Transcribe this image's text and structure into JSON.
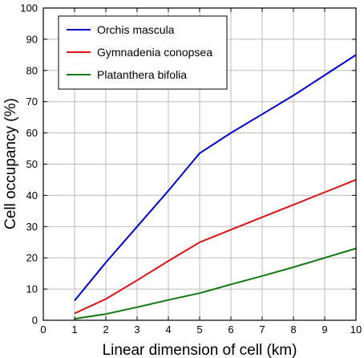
{
  "chart_data": {
    "type": "line",
    "title": "",
    "xlabel": "Linear dimension of cell (km)",
    "ylabel": "Cell occupancy (%)",
    "xlim": [
      0,
      10
    ],
    "ylim": [
      0,
      100
    ],
    "x_ticks": [
      0,
      1,
      2,
      3,
      4,
      5,
      6,
      7,
      8,
      9,
      10
    ],
    "y_ticks": [
      0,
      10,
      20,
      30,
      40,
      50,
      60,
      70,
      80,
      90,
      100
    ],
    "grid": true,
    "legend_position": "top-left",
    "series": [
      {
        "name": "Orchis mascula",
        "color": "#0000cc",
        "x": [
          1,
          2,
          3,
          4,
          5,
          6,
          7,
          8,
          9,
          10
        ],
        "values": [
          6.3,
          18.5,
          30,
          41.5,
          53.5,
          60,
          66,
          72,
          78.5,
          85
        ]
      },
      {
        "name": "Gymnadenia conopsea",
        "color": "#dd1111",
        "x": [
          1,
          2,
          3,
          4,
          5,
          6,
          7,
          8,
          9,
          10
        ],
        "values": [
          2.2,
          6.8,
          12.8,
          19,
          25,
          29,
          33,
          37,
          41,
          45
        ]
      },
      {
        "name": "Platanthera bifolia",
        "color": "#117711",
        "x": [
          1,
          2,
          3,
          4,
          5,
          6,
          7,
          8,
          9,
          10
        ],
        "values": [
          0.5,
          2,
          4.2,
          6.5,
          8.7,
          11.5,
          14.2,
          17,
          20,
          23
        ]
      }
    ]
  }
}
